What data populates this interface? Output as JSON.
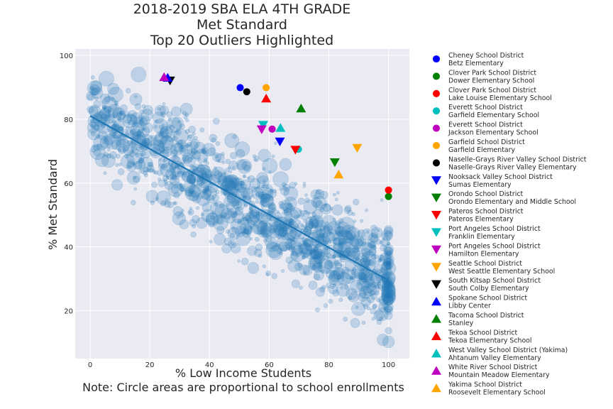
{
  "chart_data": {
    "type": "scatter",
    "title_lines": [
      "2018-2019 SBA ELA 4TH GRADE",
      "Met Standard",
      "Top 20 Outliers Highlighted"
    ],
    "xlabel": "% Low Income Students",
    "ylabel": "% Met Standard",
    "note": "Note: Circle areas are proportional to school enrollments",
    "xlim": [
      -5,
      107
    ],
    "ylim": [
      5,
      102
    ],
    "xticks": [
      0,
      20,
      40,
      60,
      80,
      100
    ],
    "yticks": [
      20,
      40,
      60,
      80,
      100
    ],
    "grid": true,
    "legend_position": "right",
    "background_color": "#eaeaf2",
    "grid_color": "#ffffff",
    "bubble_color": "#1f77b4",
    "trend_color": "#1f77b4",
    "trend_line": {
      "x": [
        0,
        100
      ],
      "y": [
        81,
        29.5
      ]
    },
    "background_points": {
      "description_count": 1300,
      "x_range": [
        0,
        100
      ],
      "y_range": [
        10,
        97
      ]
    },
    "outliers": [
      {
        "district": "Cheney School District",
        "school": "Betz Elementary",
        "marker": "circle",
        "color": "#0000ff",
        "x": 50.3,
        "y": 89.9
      },
      {
        "district": "Clover Park School District",
        "school": "Dower Elementary School",
        "marker": "circle",
        "color": "#008000",
        "x": 100,
        "y": 55.8
      },
      {
        "district": "Clover Park School District",
        "school": "Lake Louise Elementary School",
        "marker": "circle",
        "color": "#ff0000",
        "x": 100,
        "y": 57.8
      },
      {
        "district": "Everett School District",
        "school": "Garfield Elementary School",
        "marker": "circle",
        "color": "#00bfbf",
        "x": 69.8,
        "y": 70.6
      },
      {
        "district": "Everett School District",
        "school": "Jackson Elementary School",
        "marker": "circle",
        "color": "#bf00bf",
        "x": 61.0,
        "y": 76.9
      },
      {
        "district": "Garfield School District",
        "school": "Garfield Elementary",
        "marker": "circle",
        "color": "#ffa500",
        "x": 59.0,
        "y": 89.9
      },
      {
        "district": "Naselle-Grays River Valley School District",
        "school": "Naselle-Grays River Valley Elementary",
        "marker": "circle",
        "color": "#000000",
        "x": 52.5,
        "y": 88.6
      },
      {
        "district": "Nooksack Valley School District",
        "school": "Sumas Elementary",
        "marker": "triangle-down",
        "color": "#0000ff",
        "x": 63.6,
        "y": 73.0
      },
      {
        "district": "Orondo School District",
        "school": "Orondo Elementary and Middle School",
        "marker": "triangle-down",
        "color": "#008000",
        "x": 82.0,
        "y": 66.5
      },
      {
        "district": "Pateros School District",
        "school": "Pateros Elementary",
        "marker": "triangle-down",
        "color": "#ff0000",
        "x": 68.8,
        "y": 70.4
      },
      {
        "district": "Port Angeles School District",
        "school": "Franklin Elementary",
        "marker": "triangle-down",
        "color": "#00bfbf",
        "x": 58.0,
        "y": 78.2
      },
      {
        "district": "Port Angeles School District",
        "school": "Hamilton Elementary",
        "marker": "triangle-down",
        "color": "#bf00bf",
        "x": 57.5,
        "y": 76.8
      },
      {
        "district": "Seattle School District",
        "school": "West Seattle Elementary School",
        "marker": "triangle-down",
        "color": "#ffa500",
        "x": 89.5,
        "y": 71.0
      },
      {
        "district": "South Kitsap School District",
        "school": "South Colby Elementary",
        "marker": "triangle-down",
        "color": "#000000",
        "x": 26.8,
        "y": 92.1
      },
      {
        "district": "Spokane School District",
        "school": "Libby Center",
        "marker": "triangle-up",
        "color": "#0000ff",
        "x": 26.0,
        "y": 93.0
      },
      {
        "district": "Tacoma School District",
        "school": "Stanley",
        "marker": "triangle-up",
        "color": "#008000",
        "x": 70.7,
        "y": 83.4
      },
      {
        "district": "Tekoa School District",
        "school": "Tekoa Elementary School",
        "marker": "triangle-up",
        "color": "#ff0000",
        "x": 59.0,
        "y": 86.5
      },
      {
        "district": "West Valley School District (Yakima)",
        "school": "Ahtanum Valley Elementary",
        "marker": "triangle-up",
        "color": "#00bfbf",
        "x": 63.8,
        "y": 77.3
      },
      {
        "district": "White River School District",
        "school": "Mountain Meadow Elementary",
        "marker": "triangle-up",
        "color": "#bf00bf",
        "x": 24.8,
        "y": 93.2
      },
      {
        "district": "Yakima School District",
        "school": "Roosevelt Elementary School",
        "marker": "triangle-up",
        "color": "#ffa500",
        "x": 83.3,
        "y": 62.7
      }
    ]
  }
}
